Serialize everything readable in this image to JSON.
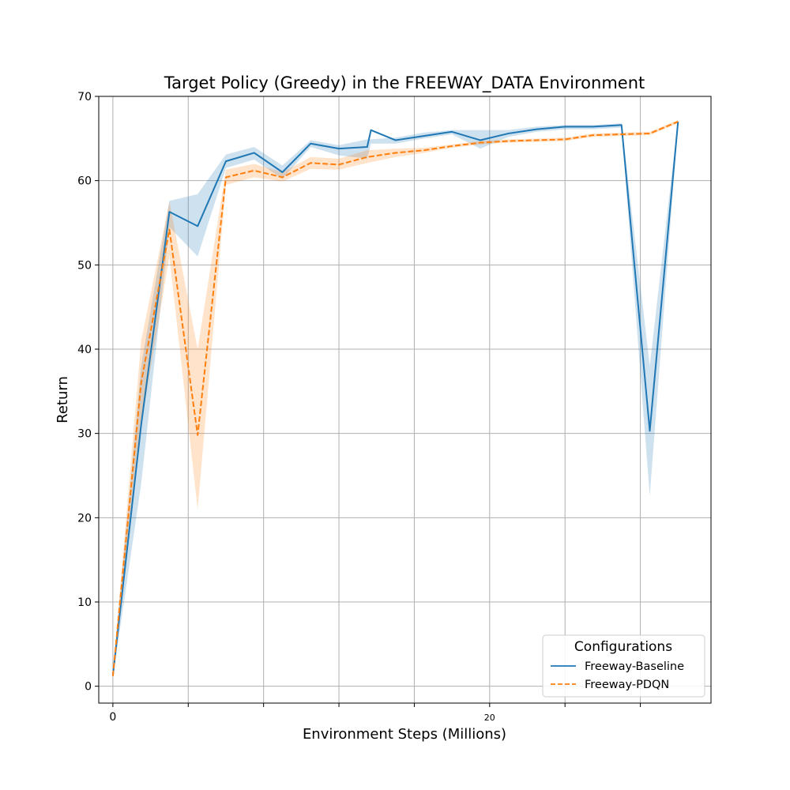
{
  "chart_data": {
    "type": "line",
    "title": "Target Policy (Greedy) in the FREEWAY_DATA Environment",
    "xlabel": "Environment Steps (Millions)",
    "ylabel": "Return",
    "xlim": [
      -0.75,
      31.75
    ],
    "ylim": [
      -2,
      70
    ],
    "x_ticks": [
      0,
      4,
      8,
      12,
      16,
      20,
      24,
      28
    ],
    "x_tick_labels": [
      "0",
      "",
      "",
      "",
      "",
      "20",
      "",
      ""
    ],
    "y_ticks": [
      0,
      10,
      20,
      30,
      40,
      50,
      60,
      70
    ],
    "y_tick_labels": [
      "0",
      "10",
      "20",
      "30",
      "40",
      "50",
      "60",
      "70"
    ],
    "grid": true,
    "legend": {
      "title": "Configurations",
      "position": "bottom-right"
    },
    "series": [
      {
        "name": "Freeway-Baseline",
        "color": "#1f77b4",
        "style": "solid",
        "x": [
          0,
          1.5,
          3,
          4.5,
          6,
          7.5,
          9,
          10.5,
          12,
          13.5,
          13.7,
          15,
          16.5,
          18,
          19.5,
          21,
          22.5,
          24,
          25.5,
          27,
          28.5,
          30
        ],
        "y": [
          1.3,
          31,
          56.3,
          54.6,
          62.3,
          63.3,
          61.0,
          64.4,
          63.8,
          64.0,
          66.0,
          64.8,
          65.3,
          65.8,
          64.8,
          65.6,
          66.1,
          66.4,
          66.4,
          66.6,
          30.3,
          67.0
        ],
        "lower": [
          1.0,
          24,
          54.5,
          51.0,
          61.5,
          62.5,
          60.2,
          64.0,
          63.0,
          62.6,
          64.4,
          64.4,
          65.0,
          65.5,
          63.8,
          65.2,
          65.8,
          66.1,
          66.1,
          66.3,
          22.6,
          66.7
        ],
        "upper": [
          1.6,
          38,
          57.6,
          58.4,
          63.1,
          64.0,
          61.8,
          64.8,
          64.2,
          64.9,
          64.9,
          65.1,
          65.7,
          66.0,
          66.0,
          66.0,
          66.4,
          66.6,
          66.6,
          66.8,
          38.0,
          67.3
        ]
      },
      {
        "name": "Freeway-PDQN",
        "color": "#ff7f0e",
        "style": "dashed",
        "x": [
          0,
          1.5,
          3,
          4.5,
          6,
          7.5,
          9,
          10.5,
          12,
          13.5,
          15,
          16.5,
          18,
          19.5,
          21,
          22.5,
          24,
          25.5,
          27,
          28.5,
          30
        ],
        "y": [
          1.2,
          36,
          54.2,
          29.8,
          60.4,
          61.2,
          60.4,
          62.1,
          61.9,
          62.8,
          63.3,
          63.6,
          64.1,
          64.5,
          64.7,
          64.8,
          64.9,
          65.4,
          65.5,
          65.6,
          67.0
        ],
        "lower": [
          0.9,
          31,
          51.0,
          21.0,
          59.5,
          60.4,
          59.9,
          61.4,
          61.3,
          62.1,
          62.8,
          63.3,
          63.9,
          64.3,
          64.5,
          64.6,
          64.7,
          65.2,
          65.3,
          65.4,
          66.8
        ],
        "upper": [
          1.5,
          41,
          57.5,
          40.0,
          61.3,
          62.0,
          61.0,
          62.8,
          62.6,
          63.6,
          63.8,
          63.9,
          64.3,
          64.7,
          64.9,
          65.0,
          65.1,
          65.6,
          65.7,
          65.8,
          67.2
        ]
      }
    ]
  }
}
